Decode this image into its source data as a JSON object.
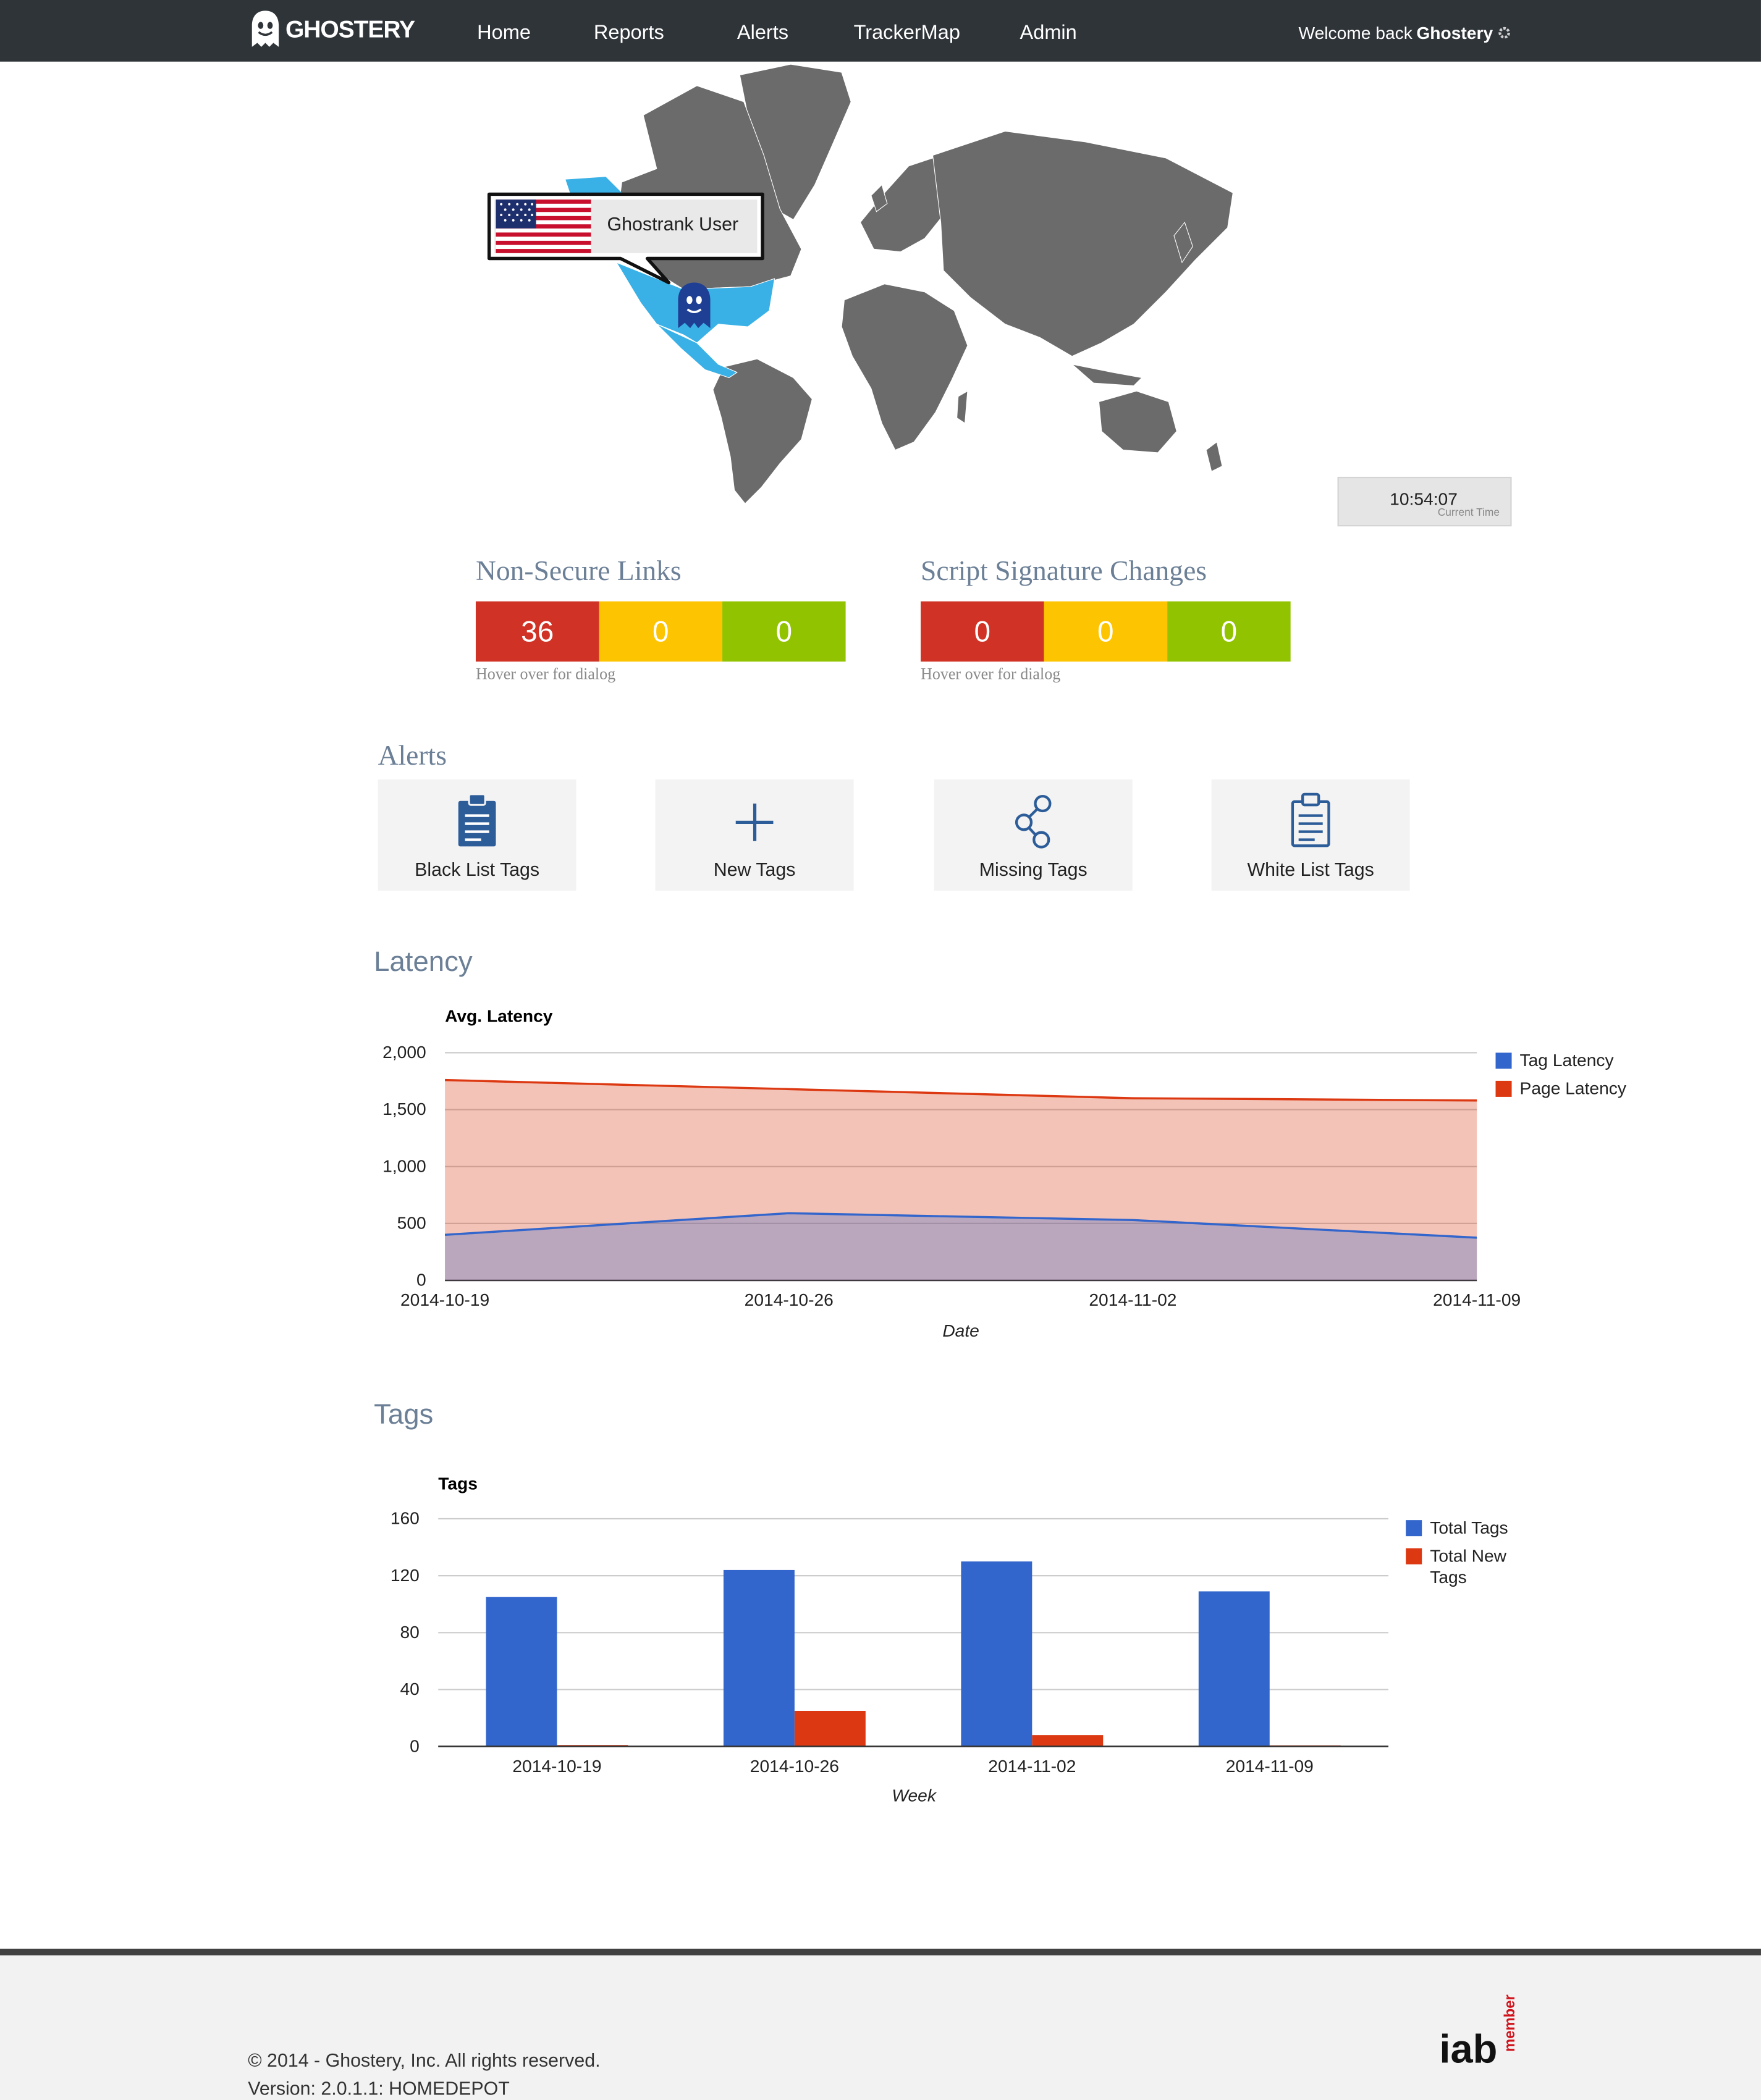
{
  "nav": {
    "brand": "GHOSTERY",
    "links": [
      "Home",
      "Reports",
      "Alerts",
      "TrackerMap",
      "Admin"
    ],
    "welcome_prefix": "Welcome back",
    "user": "Ghostery"
  },
  "map": {
    "callout_label": "Ghostrank User",
    "highlight_color": "#39b1e6",
    "land_color": "#6b6b6b",
    "clock_time": "10:54:07",
    "clock_label": "Current Time"
  },
  "metrics": [
    {
      "title": "Non-Secure Links",
      "values": [
        "36",
        "0",
        "0"
      ],
      "hint": "Hover over for dialog"
    },
    {
      "title": "Script Signature Changes",
      "values": [
        "0",
        "0",
        "0"
      ],
      "hint": "Hover over for dialog"
    }
  ],
  "alerts": {
    "title": "Alerts",
    "items": [
      {
        "label": "Black List Tags",
        "icon": "clipboard-list-icon"
      },
      {
        "label": "New Tags",
        "icon": "plus-icon"
      },
      {
        "label": "Missing Tags",
        "icon": "share-nodes-icon"
      },
      {
        "label": "White List Tags",
        "icon": "clipboard-outline-icon"
      }
    ]
  },
  "latency": {
    "section_title": "Latency"
  },
  "tags": {
    "section_title": "Tags"
  },
  "chart_data": [
    {
      "type": "area",
      "title": "Avg. Latency",
      "xlabel": "Date",
      "ylabel": "",
      "x": [
        "2014-10-19",
        "2014-10-26",
        "2014-11-02",
        "2014-11-09"
      ],
      "ylim": [
        0,
        2000
      ],
      "yticks": [
        "0",
        "500",
        "1,000",
        "1,500",
        "2,000"
      ],
      "series": [
        {
          "name": "Tag Latency",
          "color": "#3366cc",
          "values": [
            400,
            590,
            530,
            375
          ]
        },
        {
          "name": "Page Latency",
          "color": "#dc3912",
          "values": [
            1760,
            1680,
            1600,
            1580
          ]
        }
      ],
      "legend": "right",
      "grid": true
    },
    {
      "type": "bar",
      "title": "Tags",
      "xlabel": "Week",
      "ylabel": "",
      "categories": [
        "2014-10-19",
        "2014-10-26",
        "2014-11-02",
        "2014-11-09"
      ],
      "ylim": [
        0,
        160
      ],
      "yticks": [
        "0",
        "40",
        "80",
        "120",
        "160"
      ],
      "series": [
        {
          "name": "Total Tags",
          "color": "#3366cc",
          "values": [
            105,
            124,
            130,
            109
          ]
        },
        {
          "name": "Total New Tags",
          "color": "#dc3912",
          "values": [
            1,
            25,
            8,
            0.5
          ]
        }
      ],
      "legend": "right",
      "grid": true
    }
  ],
  "footer": {
    "copyright": "© 2014 - Ghostery, Inc. All rights reserved.",
    "version": "Version: 2.0.1.1: HOMEDEPOT",
    "iab_text": "iab",
    "iab_member": "member"
  }
}
